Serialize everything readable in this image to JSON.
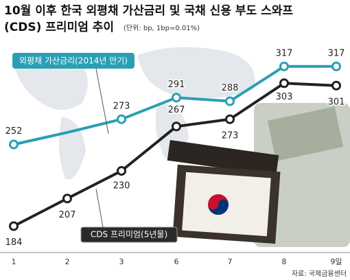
{
  "chart_data": {
    "type": "line",
    "title": "10월 이후 한국 외평채 가산금리 및 국채 신용 부도 스와프",
    "subtitle": "(CDS) 프리미엄 추이",
    "unit_note": "(단위: bp, 1bp=0.01%)",
    "source": "자료: 국제금융센터",
    "categories": [
      "1",
      "2",
      "3",
      "6",
      "7",
      "8",
      "9일"
    ],
    "series": [
      {
        "name": "외평채 가산금리(2014년 만기)",
        "color": "#2a9fb4",
        "values": [
          252,
          262,
          273,
          291,
          288,
          317,
          317
        ],
        "value_labels": [
          "252",
          null,
          "273",
          "291",
          "288",
          "317",
          "317"
        ]
      },
      {
        "name": "CDS 프리미엄(5년물)",
        "color": "#222222",
        "values": [
          184,
          207,
          230,
          267,
          273,
          303,
          301
        ]
      }
    ],
    "ylim": [
      162,
      338
    ]
  }
}
